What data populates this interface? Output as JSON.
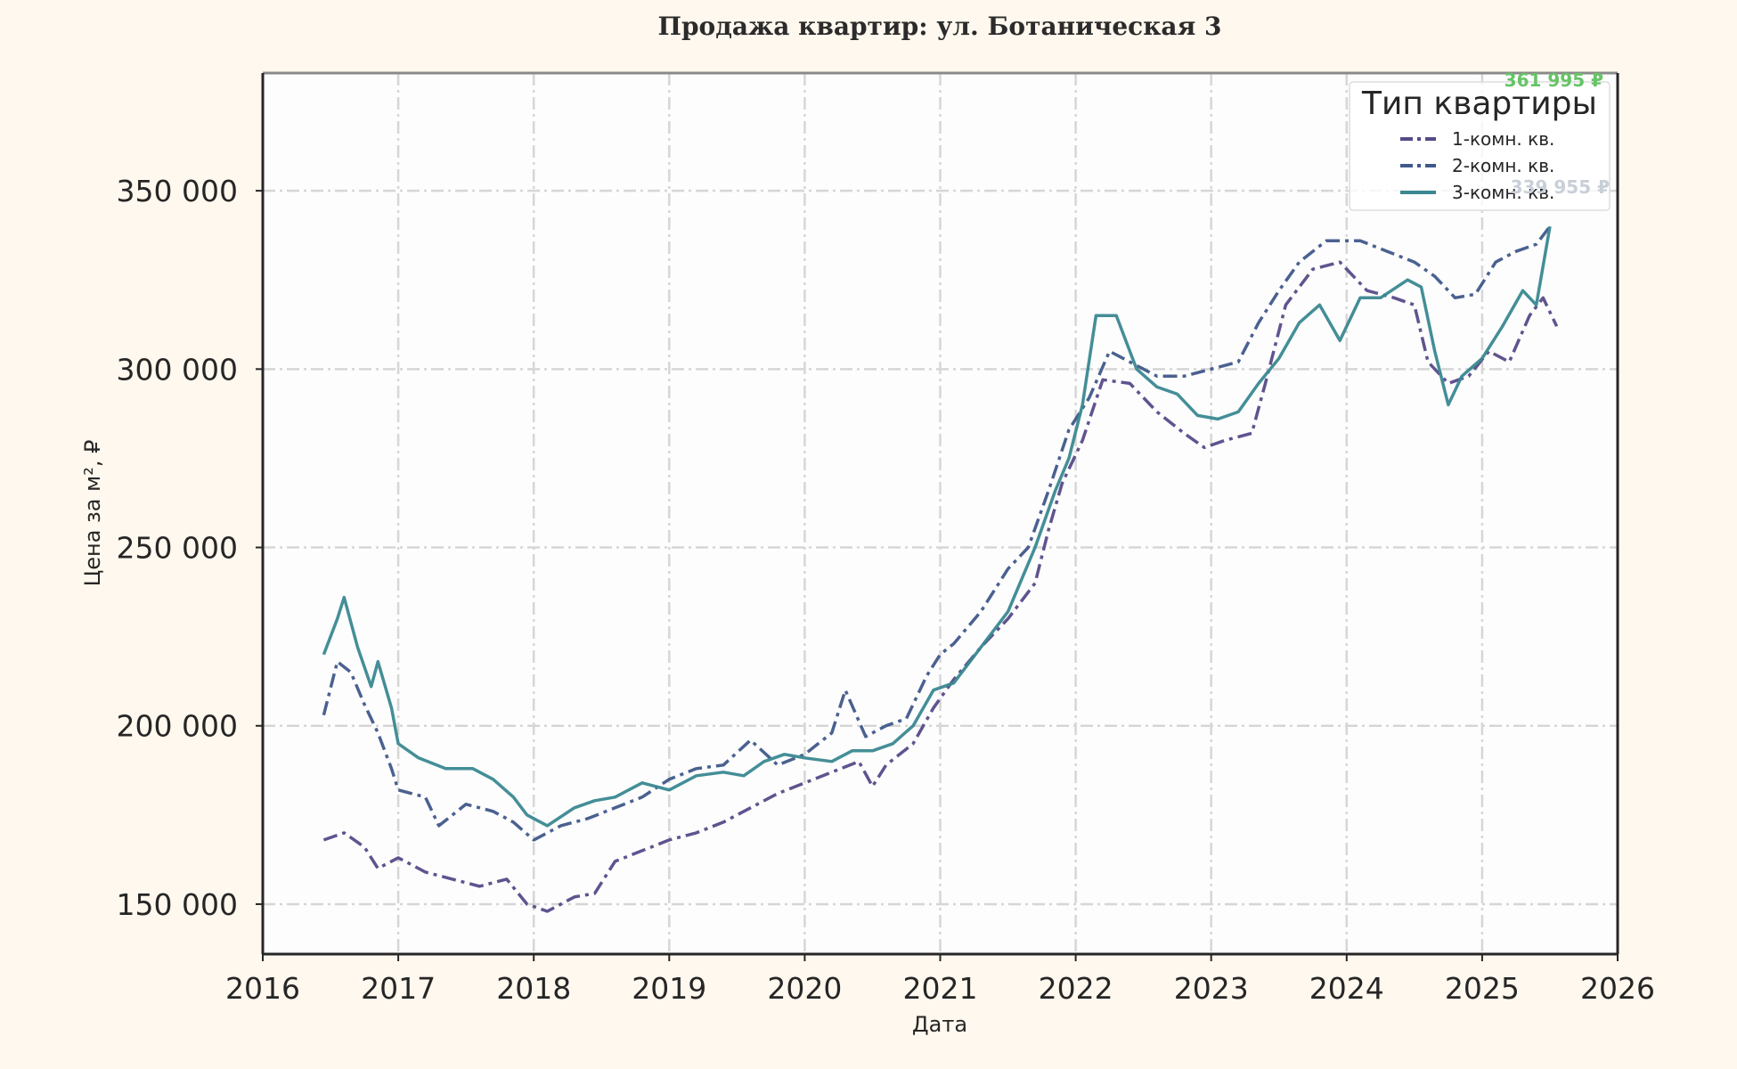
{
  "chart_data": {
    "type": "line",
    "title": "Продажа квартир: ул. Ботаническая 3",
    "xlabel": "Дата",
    "ylabel": "Цена за м², ₽",
    "xlim": [
      2016,
      2026
    ],
    "ylim": [
      136000,
      383000
    ],
    "x_ticks": [
      "2016",
      "2017",
      "2018",
      "2019",
      "2020",
      "2021",
      "2022",
      "2023",
      "2024",
      "2025",
      "2026"
    ],
    "y_ticks": [
      150000,
      200000,
      250000,
      300000,
      350000
    ],
    "y_tick_labels": [
      "150 000",
      "200 000",
      "250 000",
      "300 000",
      "350 000"
    ],
    "grid": true,
    "legend": {
      "title": "Тип квартиры",
      "position": "top-right"
    },
    "annotations": [
      {
        "text": "361 995 ₽",
        "color": "#66c466"
      },
      {
        "text": "339 955 ₽",
        "color": "#c9cfd8"
      }
    ],
    "series": [
      {
        "name": "1-комн. кв.",
        "color": "#574a88",
        "style": "dashdot",
        "points": [
          [
            2016.45,
            168000
          ],
          [
            2016.6,
            170000
          ],
          [
            2016.75,
            166000
          ],
          [
            2016.85,
            160000
          ],
          [
            2017.0,
            163000
          ],
          [
            2017.2,
            159000
          ],
          [
            2017.4,
            157000
          ],
          [
            2017.6,
            155000
          ],
          [
            2017.8,
            157000
          ],
          [
            2017.95,
            150000
          ],
          [
            2018.1,
            148000
          ],
          [
            2018.3,
            152000
          ],
          [
            2018.45,
            153000
          ],
          [
            2018.6,
            162000
          ],
          [
            2018.8,
            165000
          ],
          [
            2019.0,
            168000
          ],
          [
            2019.2,
            170000
          ],
          [
            2019.4,
            173000
          ],
          [
            2019.6,
            177000
          ],
          [
            2019.8,
            181000
          ],
          [
            2020.0,
            184000
          ],
          [
            2020.2,
            187000
          ],
          [
            2020.4,
            190000
          ],
          [
            2020.5,
            183000
          ],
          [
            2020.6,
            189000
          ],
          [
            2020.8,
            195000
          ],
          [
            2020.95,
            205000
          ],
          [
            2021.1,
            213000
          ],
          [
            2021.3,
            222000
          ],
          [
            2021.5,
            230000
          ],
          [
            2021.7,
            240000
          ],
          [
            2021.8,
            255000
          ],
          [
            2021.9,
            268000
          ],
          [
            2022.05,
            280000
          ],
          [
            2022.2,
            297000
          ],
          [
            2022.4,
            296000
          ],
          [
            2022.6,
            288000
          ],
          [
            2022.8,
            282000
          ],
          [
            2022.95,
            278000
          ],
          [
            2023.1,
            280000
          ],
          [
            2023.3,
            282000
          ],
          [
            2023.4,
            296000
          ],
          [
            2023.55,
            318000
          ],
          [
            2023.75,
            328000
          ],
          [
            2023.95,
            330000
          ],
          [
            2024.15,
            322000
          ],
          [
            2024.35,
            320000
          ],
          [
            2024.5,
            318000
          ],
          [
            2024.6,
            302000
          ],
          [
            2024.75,
            296000
          ],
          [
            2024.9,
            298000
          ],
          [
            2025.05,
            305000
          ],
          [
            2025.2,
            302000
          ],
          [
            2025.35,
            315000
          ],
          [
            2025.45,
            320000
          ],
          [
            2025.55,
            312000
          ]
        ]
      },
      {
        "name": "2-комн. кв.",
        "color": "#40598a",
        "style": "dashdot",
        "points": [
          [
            2016.45,
            203000
          ],
          [
            2016.55,
            218000
          ],
          [
            2016.65,
            215000
          ],
          [
            2016.75,
            206000
          ],
          [
            2016.85,
            198000
          ],
          [
            2016.95,
            188000
          ],
          [
            2017.0,
            182000
          ],
          [
            2017.2,
            180000
          ],
          [
            2017.3,
            172000
          ],
          [
            2017.5,
            178000
          ],
          [
            2017.7,
            176000
          ],
          [
            2017.85,
            173000
          ],
          [
            2018.0,
            168000
          ],
          [
            2018.2,
            172000
          ],
          [
            2018.4,
            174000
          ],
          [
            2018.6,
            177000
          ],
          [
            2018.8,
            180000
          ],
          [
            2019.0,
            185000
          ],
          [
            2019.2,
            188000
          ],
          [
            2019.4,
            189000
          ],
          [
            2019.6,
            196000
          ],
          [
            2019.8,
            189000
          ],
          [
            2020.0,
            192000
          ],
          [
            2020.2,
            198000
          ],
          [
            2020.3,
            210000
          ],
          [
            2020.45,
            197000
          ],
          [
            2020.6,
            200000
          ],
          [
            2020.75,
            202000
          ],
          [
            2020.9,
            214000
          ],
          [
            2021.0,
            220000
          ],
          [
            2021.1,
            223000
          ],
          [
            2021.3,
            232000
          ],
          [
            2021.5,
            244000
          ],
          [
            2021.65,
            250000
          ],
          [
            2021.8,
            266000
          ],
          [
            2021.95,
            283000
          ],
          [
            2022.1,
            292000
          ],
          [
            2022.25,
            305000
          ],
          [
            2022.4,
            302000
          ],
          [
            2022.6,
            298000
          ],
          [
            2022.8,
            298000
          ],
          [
            2023.0,
            300000
          ],
          [
            2023.2,
            302000
          ],
          [
            2023.35,
            313000
          ],
          [
            2023.5,
            322000
          ],
          [
            2023.65,
            330000
          ],
          [
            2023.85,
            336000
          ],
          [
            2024.1,
            336000
          ],
          [
            2024.3,
            333000
          ],
          [
            2024.5,
            330000
          ],
          [
            2024.65,
            326000
          ],
          [
            2024.8,
            320000
          ],
          [
            2024.95,
            321000
          ],
          [
            2025.1,
            330000
          ],
          [
            2025.25,
            333000
          ],
          [
            2025.4,
            335000
          ],
          [
            2025.5,
            340000
          ]
        ]
      },
      {
        "name": "3-комн. кв.",
        "color": "#3a8891",
        "style": "solid",
        "points": [
          [
            2016.45,
            220000
          ],
          [
            2016.55,
            230000
          ],
          [
            2016.6,
            236000
          ],
          [
            2016.7,
            222000
          ],
          [
            2016.8,
            211000
          ],
          [
            2016.85,
            218000
          ],
          [
            2016.95,
            205000
          ],
          [
            2017.0,
            195000
          ],
          [
            2017.15,
            191000
          ],
          [
            2017.35,
            188000
          ],
          [
            2017.55,
            188000
          ],
          [
            2017.7,
            185000
          ],
          [
            2017.85,
            180000
          ],
          [
            2017.95,
            175000
          ],
          [
            2018.1,
            172000
          ],
          [
            2018.3,
            177000
          ],
          [
            2018.45,
            179000
          ],
          [
            2018.6,
            180000
          ],
          [
            2018.8,
            184000
          ],
          [
            2019.0,
            182000
          ],
          [
            2019.2,
            186000
          ],
          [
            2019.4,
            187000
          ],
          [
            2019.55,
            186000
          ],
          [
            2019.7,
            190000
          ],
          [
            2019.85,
            192000
          ],
          [
            2020.0,
            191000
          ],
          [
            2020.2,
            190000
          ],
          [
            2020.35,
            193000
          ],
          [
            2020.5,
            193000
          ],
          [
            2020.65,
            195000
          ],
          [
            2020.8,
            200000
          ],
          [
            2020.95,
            210000
          ],
          [
            2021.1,
            212000
          ],
          [
            2021.3,
            222000
          ],
          [
            2021.5,
            232000
          ],
          [
            2021.7,
            250000
          ],
          [
            2021.85,
            266000
          ],
          [
            2021.95,
            275000
          ],
          [
            2022.05,
            290000
          ],
          [
            2022.15,
            315000
          ],
          [
            2022.3,
            315000
          ],
          [
            2022.45,
            300000
          ],
          [
            2022.6,
            295000
          ],
          [
            2022.75,
            293000
          ],
          [
            2022.9,
            287000
          ],
          [
            2023.05,
            286000
          ],
          [
            2023.2,
            288000
          ],
          [
            2023.35,
            296000
          ],
          [
            2023.5,
            303000
          ],
          [
            2023.65,
            313000
          ],
          [
            2023.8,
            318000
          ],
          [
            2023.95,
            308000
          ],
          [
            2024.1,
            320000
          ],
          [
            2024.25,
            320000
          ],
          [
            2024.45,
            325000
          ],
          [
            2024.55,
            323000
          ],
          [
            2024.65,
            305000
          ],
          [
            2024.75,
            290000
          ],
          [
            2024.85,
            298000
          ],
          [
            2025.0,
            303000
          ],
          [
            2025.15,
            312000
          ],
          [
            2025.3,
            322000
          ],
          [
            2025.4,
            318000
          ],
          [
            2025.5,
            340000
          ]
        ]
      }
    ]
  }
}
